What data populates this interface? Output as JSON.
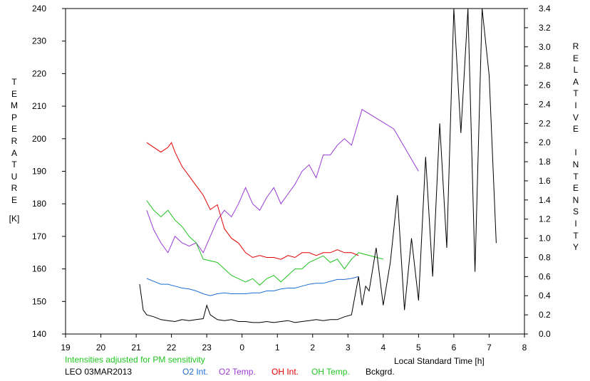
{
  "chart_data": {
    "type": "line",
    "xlabel": "Local Standard Time [h]",
    "ylabel_left": "TEMPERATURE",
    "ylabel_left_unit": "[K]",
    "ylabel_right": "RELATIVE INTENSITY",
    "x_ticks": [
      "19",
      "20",
      "21",
      "22",
      "23",
      "0",
      "1",
      "2",
      "3",
      "4",
      "5",
      "6",
      "7",
      "8"
    ],
    "xlim": [
      19,
      32
    ],
    "y_left_ticks": [
      "240",
      "230",
      "220",
      "210",
      "200",
      "190",
      "180",
      "170",
      "160",
      "150",
      "140"
    ],
    "ylim_left": [
      140,
      240
    ],
    "y_right_ticks": [
      "3.4",
      "3.2",
      "3.0",
      "2.8",
      "2.6",
      "2.4",
      "2.2",
      "2.0",
      "1.8",
      "1.6",
      "1.4",
      "1.2",
      "1.0",
      "0.8",
      "0.6",
      "0.4",
      "0.2",
      "0.0"
    ],
    "ylim_right": [
      0,
      3.4
    ],
    "grid": false,
    "annotation": "Intensities adjusted for PM sensitivity",
    "station_date": "LEO 03MAR2013",
    "legend": [
      {
        "label": "O2 Int.",
        "color": "#1f6fd0"
      },
      {
        "label": "O2 Temp.",
        "color": "#9a3ad6"
      },
      {
        "label": "OH Int.",
        "color": "#e00000"
      },
      {
        "label": "OH Temp.",
        "color": "#22c422"
      },
      {
        "label": "Bckgrd.",
        "color": "#000000"
      }
    ],
    "series": [
      {
        "name": "O2 Temp.",
        "axis": "left",
        "color": "#9a3ad6",
        "x": [
          21.3,
          21.5,
          21.7,
          21.9,
          22.1,
          22.3,
          22.5,
          22.7,
          22.9,
          23.1,
          23.3,
          23.5,
          23.7,
          23.9,
          24.1,
          24.3,
          24.5,
          24.7,
          24.9,
          25.1,
          25.3,
          25.5,
          25.7,
          25.9,
          26.1,
          26.3,
          26.5,
          26.7,
          26.9,
          27.1,
          27.4,
          28.3,
          29.0
        ],
        "y": [
          178,
          172,
          168,
          165,
          170,
          168,
          167,
          168,
          165,
          170,
          175,
          178,
          176,
          180,
          185,
          180,
          178,
          182,
          185,
          180,
          183,
          186,
          190,
          192,
          188,
          195,
          195,
          198,
          200,
          198,
          209,
          203,
          190
        ]
      },
      {
        "name": "OH Temp.",
        "axis": "left",
        "color": "#22c422",
        "x": [
          21.3,
          21.5,
          21.7,
          21.9,
          22.1,
          22.3,
          22.5,
          22.7,
          22.9,
          23.3,
          23.5,
          23.7,
          23.9,
          24.1,
          24.3,
          24.5,
          24.7,
          24.9,
          25.1,
          25.3,
          25.5,
          25.7,
          25.9,
          26.1,
          26.3,
          26.5,
          26.7,
          26.9,
          27.1,
          27.3,
          28.0
        ],
        "y": [
          181,
          178,
          176,
          178,
          175,
          173,
          170,
          168,
          163,
          162,
          160,
          158,
          157,
          156,
          157,
          155,
          157,
          158,
          156,
          158,
          160,
          160,
          162,
          163,
          164,
          162,
          163,
          160,
          163,
          165,
          163
        ]
      },
      {
        "name": "OH Int.",
        "axis": "right",
        "color": "#e00000",
        "x": [
          21.3,
          21.5,
          21.7,
          21.9,
          22.0,
          22.1,
          22.3,
          22.5,
          22.7,
          22.9,
          23.1,
          23.3,
          23.5,
          23.7,
          23.9,
          24.1,
          24.3,
          24.5,
          24.7,
          24.9,
          25.1,
          25.3,
          25.5,
          25.7,
          25.9,
          26.1,
          26.3,
          26.5,
          26.7,
          26.9,
          27.1,
          27.3
        ],
        "y": [
          2.0,
          1.95,
          1.9,
          1.95,
          2.0,
          1.9,
          1.75,
          1.65,
          1.55,
          1.45,
          1.3,
          1.35,
          1.1,
          1.0,
          0.95,
          0.85,
          0.8,
          0.82,
          0.8,
          0.8,
          0.78,
          0.82,
          0.8,
          0.85,
          0.85,
          0.82,
          0.85,
          0.85,
          0.88,
          0.85,
          0.85,
          0.82
        ]
      },
      {
        "name": "O2 Int.",
        "axis": "right",
        "color": "#1f6fd0",
        "x": [
          21.3,
          21.5,
          21.7,
          21.9,
          22.1,
          22.3,
          22.5,
          22.7,
          22.9,
          23.1,
          23.3,
          23.5,
          23.7,
          23.9,
          24.1,
          24.3,
          24.5,
          24.7,
          24.9,
          25.1,
          25.3,
          25.5,
          25.7,
          25.9,
          26.1,
          26.3,
          26.5,
          26.7,
          26.9,
          27.1,
          27.3
        ],
        "y": [
          0.58,
          0.55,
          0.52,
          0.52,
          0.5,
          0.48,
          0.47,
          0.45,
          0.42,
          0.4,
          0.42,
          0.43,
          0.42,
          0.42,
          0.42,
          0.43,
          0.43,
          0.45,
          0.45,
          0.47,
          0.48,
          0.48,
          0.5,
          0.52,
          0.53,
          0.53,
          0.55,
          0.57,
          0.57,
          0.58,
          0.6
        ]
      },
      {
        "name": "Bckgrd.",
        "axis": "right",
        "color": "#000000",
        "x": [
          21.1,
          21.2,
          21.3,
          21.5,
          21.7,
          21.9,
          22.1,
          22.3,
          22.5,
          22.7,
          22.9,
          23.0,
          23.1,
          23.3,
          23.5,
          23.7,
          23.9,
          24.1,
          24.3,
          24.5,
          24.7,
          24.9,
          25.1,
          25.3,
          25.5,
          25.7,
          25.9,
          26.1,
          26.3,
          26.5,
          26.7,
          26.9,
          27.1,
          27.3,
          27.4,
          27.5,
          27.6,
          27.8,
          28.0,
          28.2,
          28.4,
          28.6,
          28.8,
          29.0,
          29.2,
          29.4,
          29.6,
          29.8,
          30.0,
          30.2,
          30.4,
          30.6,
          30.8,
          31.0,
          31.2
        ],
        "y": [
          0.52,
          0.25,
          0.2,
          0.18,
          0.15,
          0.14,
          0.13,
          0.15,
          0.14,
          0.15,
          0.16,
          0.3,
          0.2,
          0.15,
          0.14,
          0.15,
          0.13,
          0.13,
          0.12,
          0.12,
          0.13,
          0.12,
          0.13,
          0.14,
          0.12,
          0.13,
          0.14,
          0.15,
          0.14,
          0.15,
          0.15,
          0.18,
          0.2,
          0.6,
          0.3,
          0.5,
          0.45,
          0.9,
          0.3,
          0.75,
          1.45,
          0.25,
          1.0,
          0.35,
          1.85,
          0.6,
          2.2,
          0.9,
          3.4,
          2.1,
          3.4,
          0.65,
          3.4,
          2.7,
          0.95
        ]
      }
    ]
  }
}
